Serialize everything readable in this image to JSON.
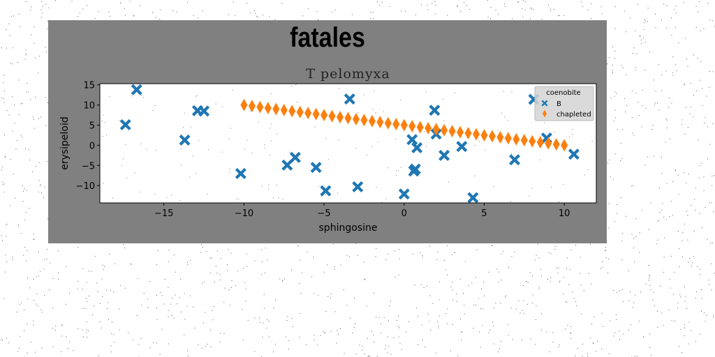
{
  "figure": {
    "title": "fatales",
    "background": "#808080"
  },
  "chart_data": {
    "type": "scatter",
    "title": "T pelomyxa",
    "xlabel": "sphingosine",
    "ylabel": "erysipeloid",
    "xlim": [
      -19,
      12
    ],
    "ylim": [
      -14.3,
      15.3
    ],
    "xticks": [
      -15,
      -10,
      -5,
      0,
      5,
      10
    ],
    "yticks": [
      -10,
      -5,
      0,
      5,
      10,
      15
    ],
    "grid": false,
    "legend": {
      "title": "coenobite",
      "placement": "top-right",
      "entries": [
        "B",
        "chapleted"
      ]
    },
    "series": [
      {
        "name": "B",
        "marker": "X",
        "color": "#1f77b4",
        "x": [
          -17.4,
          -16.7,
          -13.7,
          -12.9,
          -12.5,
          -10.2,
          -7.3,
          -6.8,
          -5.5,
          -4.9,
          -3.4,
          -2.9,
          0.0,
          0.5,
          0.6,
          0.7,
          0.8,
          1.9,
          2.0,
          2.5,
          3.6,
          4.3,
          6.9,
          8.1,
          8.9,
          10.6
        ],
        "y": [
          5.1,
          13.8,
          1.3,
          8.6,
          8.5,
          -7.0,
          -4.9,
          -3.0,
          -5.5,
          -11.3,
          11.5,
          -10.3,
          -12.1,
          1.4,
          -6.4,
          -5.9,
          -0.6,
          8.7,
          2.8,
          -2.5,
          -0.3,
          -13.0,
          -3.6,
          11.4,
          1.8,
          -2.2
        ]
      },
      {
        "name": "chapleted",
        "marker": "thin_diamond",
        "color": "#ff7f0e",
        "x": [
          -10.0,
          -9.5,
          -9.0,
          -8.5,
          -8.0,
          -7.5,
          -7.0,
          -6.5,
          -6.0,
          -5.5,
          -5.0,
          -4.5,
          -4.0,
          -3.5,
          -3.0,
          -2.5,
          -2.0,
          -1.5,
          -1.0,
          -0.5,
          0.0,
          0.5,
          1.0,
          1.5,
          2.0,
          2.5,
          3.0,
          3.5,
          4.0,
          4.5,
          5.0,
          5.5,
          6.0,
          6.5,
          7.0,
          7.5,
          8.0,
          8.5,
          9.0,
          9.5,
          10.0
        ],
        "y": [
          10.0,
          9.75,
          9.5,
          9.25,
          9.0,
          8.75,
          8.5,
          8.25,
          8.0,
          7.75,
          7.5,
          7.25,
          7.0,
          6.75,
          6.5,
          6.25,
          6.0,
          5.75,
          5.5,
          5.25,
          5.0,
          4.75,
          4.5,
          4.25,
          4.0,
          3.75,
          3.5,
          3.25,
          3.0,
          2.75,
          2.5,
          2.25,
          2.0,
          1.75,
          1.5,
          1.25,
          1.0,
          0.75,
          0.5,
          0.25,
          0.0
        ]
      }
    ]
  }
}
